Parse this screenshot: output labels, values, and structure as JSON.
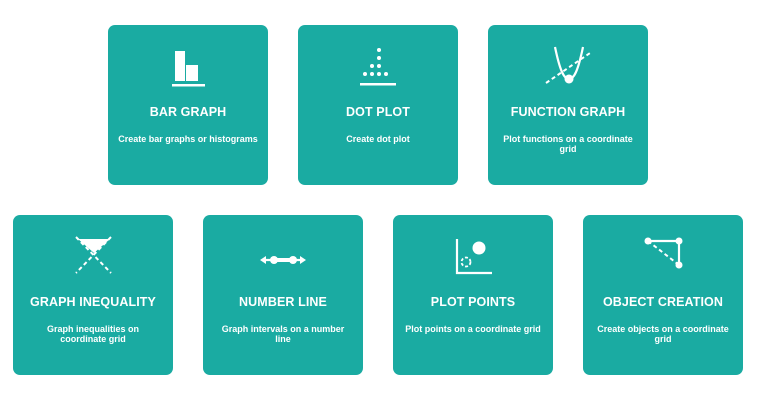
{
  "cards": [
    {
      "icon": "bar-graph-icon",
      "title": "BAR GRAPH",
      "description": "Create bar graphs or histograms"
    },
    {
      "icon": "dot-plot-icon",
      "title": "DOT PLOT",
      "description": "Create dot plot"
    },
    {
      "icon": "function-graph-icon",
      "title": "FUNCTION GRAPH",
      "description": "Plot functions on a coordinate grid"
    },
    {
      "icon": "graph-inequality-icon",
      "title": "GRAPH INEQUALITY",
      "description": "Graph inequalities on coordinate grid"
    },
    {
      "icon": "number-line-icon",
      "title": "NUMBER LINE",
      "description": "Graph intervals on a number line"
    },
    {
      "icon": "plot-points-icon",
      "title": "PLOT POINTS",
      "description": "Plot points on a coordinate grid"
    },
    {
      "icon": "object-creation-icon",
      "title": "OBJECT CREATION",
      "description": "Create objects on a coordinate grid"
    }
  ],
  "colors": {
    "card_background": "#1aaba2",
    "text": "#ffffff",
    "page_background": "#ffffff"
  }
}
